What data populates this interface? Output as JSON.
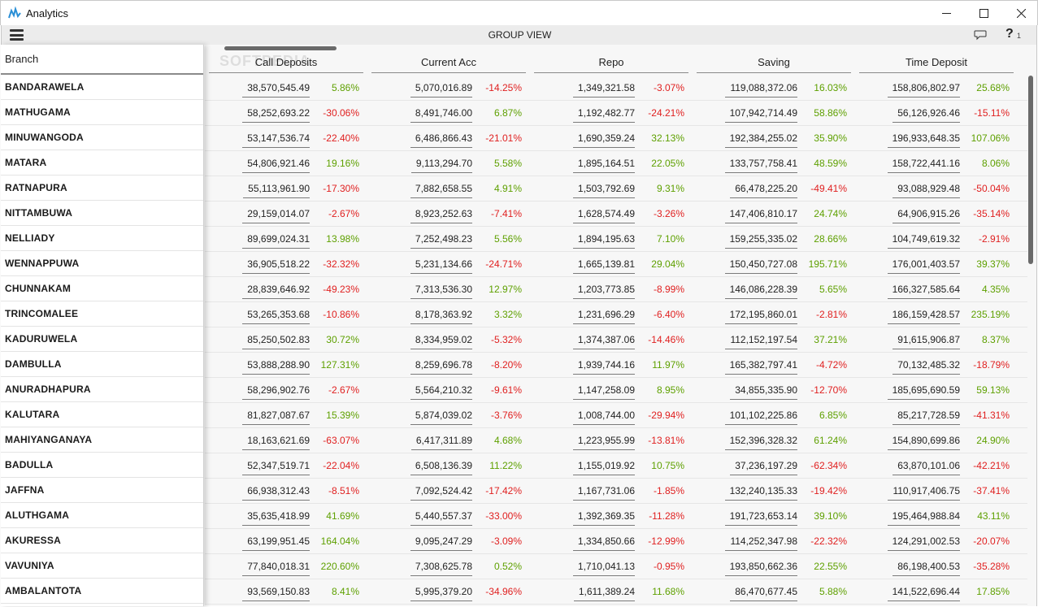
{
  "window": {
    "title": "Analytics",
    "minimize": "–",
    "maximize": "□",
    "close": "✕"
  },
  "toolbar": {
    "title": "GROUP VIEW",
    "help_glyph": "?",
    "help_count": "1",
    "menu_icon": "hamburger-icon",
    "chat_icon": "speech-bubble-icon"
  },
  "watermark": "SOFTPEDIA",
  "sidebar": {
    "header": "Branch"
  },
  "columns": [
    "Call Deposits",
    "Current Acc",
    "Repo",
    "Saving",
    "Time Deposit"
  ],
  "colors": {
    "positive": "#5ea000",
    "negative": "#e02020",
    "toolbar_bg": "#ececec",
    "grid_bg": "#f7f7f7"
  },
  "rows": [
    {
      "branch": "BANDARAWELA",
      "cells": [
        [
          "38,570,545.49",
          "5.86%"
        ],
        [
          "5,070,016.89",
          "-14.25%"
        ],
        [
          "1,349,321.58",
          "-3.07%"
        ],
        [
          "119,088,372.06",
          "16.03%"
        ],
        [
          "158,806,802.97",
          "25.68%"
        ]
      ]
    },
    {
      "branch": "MATHUGAMA",
      "cells": [
        [
          "58,252,693.22",
          "-30.06%"
        ],
        [
          "8,491,746.00",
          "6.87%"
        ],
        [
          "1,192,482.77",
          "-24.21%"
        ],
        [
          "107,942,714.49",
          "58.86%"
        ],
        [
          "56,126,926.46",
          "-15.11%"
        ]
      ]
    },
    {
      "branch": "MINUWANGODA",
      "cells": [
        [
          "53,147,536.74",
          "-22.40%"
        ],
        [
          "6,486,866.43",
          "-21.01%"
        ],
        [
          "1,690,359.24",
          "32.13%"
        ],
        [
          "192,384,255.02",
          "35.90%"
        ],
        [
          "196,933,648.35",
          "107.06%"
        ]
      ]
    },
    {
      "branch": "MATARA",
      "cells": [
        [
          "54,806,921.46",
          "19.16%"
        ],
        [
          "9,113,294.70",
          "5.58%"
        ],
        [
          "1,895,164.51",
          "22.05%"
        ],
        [
          "133,757,758.41",
          "48.59%"
        ],
        [
          "158,722,441.16",
          "8.06%"
        ]
      ]
    },
    {
      "branch": "RATNAPURA",
      "cells": [
        [
          "55,113,961.90",
          "-17.30%"
        ],
        [
          "7,882,658.55",
          "4.91%"
        ],
        [
          "1,503,792.69",
          "9.31%"
        ],
        [
          "66,478,225.20",
          "-49.41%"
        ],
        [
          "93,088,929.48",
          "-50.04%"
        ]
      ]
    },
    {
      "branch": "NITTAMBUWA",
      "cells": [
        [
          "29,159,014.07",
          "-2.67%"
        ],
        [
          "8,923,252.63",
          "-7.41%"
        ],
        [
          "1,628,574.49",
          "-3.26%"
        ],
        [
          "147,406,810.17",
          "24.74%"
        ],
        [
          "64,906,915.26",
          "-35.14%"
        ]
      ]
    },
    {
      "branch": "NELLIADY",
      "cells": [
        [
          "89,699,024.31",
          "13.98%"
        ],
        [
          "7,252,498.23",
          "5.56%"
        ],
        [
          "1,894,195.63",
          "7.10%"
        ],
        [
          "159,255,335.02",
          "28.66%"
        ],
        [
          "104,749,619.32",
          "-2.91%"
        ]
      ]
    },
    {
      "branch": "WENNAPPUWA",
      "cells": [
        [
          "36,905,518.22",
          "-32.32%"
        ],
        [
          "5,231,134.66",
          "-24.71%"
        ],
        [
          "1,665,139.81",
          "29.04%"
        ],
        [
          "150,450,727.08",
          "195.71%"
        ],
        [
          "176,001,403.57",
          "39.37%"
        ]
      ]
    },
    {
      "branch": "CHUNNAKAM",
      "cells": [
        [
          "28,839,646.92",
          "-49.23%"
        ],
        [
          "7,313,536.30",
          "12.97%"
        ],
        [
          "1,203,773.85",
          "-8.99%"
        ],
        [
          "146,086,228.39",
          "5.65%"
        ],
        [
          "166,327,585.64",
          "4.35%"
        ]
      ]
    },
    {
      "branch": "TRINCOMALEE",
      "cells": [
        [
          "53,265,353.68",
          "-10.86%"
        ],
        [
          "8,178,363.92",
          "3.32%"
        ],
        [
          "1,231,696.29",
          "-6.40%"
        ],
        [
          "172,195,860.01",
          "-2.81%"
        ],
        [
          "186,159,428.57",
          "235.19%"
        ]
      ]
    },
    {
      "branch": "KADURUWELA",
      "cells": [
        [
          "85,250,502.83",
          "30.72%"
        ],
        [
          "8,334,959.02",
          "-5.32%"
        ],
        [
          "1,374,387.06",
          "-14.46%"
        ],
        [
          "112,152,197.54",
          "37.21%"
        ],
        [
          "91,615,906.87",
          "8.37%"
        ]
      ]
    },
    {
      "branch": "DAMBULLA",
      "cells": [
        [
          "53,888,288.90",
          "127.31%"
        ],
        [
          "8,259,696.78",
          "-8.20%"
        ],
        [
          "1,939,744.16",
          "11.97%"
        ],
        [
          "165,382,797.41",
          "-4.72%"
        ],
        [
          "70,132,485.32",
          "-18.79%"
        ]
      ]
    },
    {
      "branch": "ANURADHAPURA",
      "cells": [
        [
          "58,296,902.76",
          "-2.67%"
        ],
        [
          "5,564,210.32",
          "-9.61%"
        ],
        [
          "1,147,258.09",
          "8.95%"
        ],
        [
          "34,855,335.90",
          "-12.70%"
        ],
        [
          "185,695,690.59",
          "59.13%"
        ]
      ]
    },
    {
      "branch": "KALUTARA",
      "cells": [
        [
          "81,827,087.67",
          "15.39%"
        ],
        [
          "5,874,039.02",
          "-3.76%"
        ],
        [
          "1,008,744.00",
          "-29.94%"
        ],
        [
          "101,102,225.86",
          "6.85%"
        ],
        [
          "85,217,728.59",
          "-41.31%"
        ]
      ]
    },
    {
      "branch": "MAHIYANGANAYA",
      "cells": [
        [
          "18,163,621.69",
          "-63.07%"
        ],
        [
          "6,417,311.89",
          "4.68%"
        ],
        [
          "1,223,955.99",
          "-13.81%"
        ],
        [
          "152,396,328.32",
          "61.24%"
        ],
        [
          "154,890,699.86",
          "24.90%"
        ]
      ]
    },
    {
      "branch": "BADULLA",
      "cells": [
        [
          "52,347,519.71",
          "-22.04%"
        ],
        [
          "6,508,136.39",
          "11.22%"
        ],
        [
          "1,155,019.92",
          "10.75%"
        ],
        [
          "37,236,197.29",
          "-62.34%"
        ],
        [
          "63,870,101.06",
          "-42.21%"
        ]
      ]
    },
    {
      "branch": "JAFFNA",
      "cells": [
        [
          "66,938,312.43",
          "-8.51%"
        ],
        [
          "7,092,524.42",
          "-17.42%"
        ],
        [
          "1,167,731.06",
          "-1.85%"
        ],
        [
          "132,240,135.33",
          "-19.42%"
        ],
        [
          "110,917,406.75",
          "-37.41%"
        ]
      ]
    },
    {
      "branch": "ALUTHGAMA",
      "cells": [
        [
          "35,635,418.99",
          "41.69%"
        ],
        [
          "5,440,557.37",
          "-33.00%"
        ],
        [
          "1,392,369.35",
          "-11.28%"
        ],
        [
          "191,723,653.14",
          "39.10%"
        ],
        [
          "195,464,988.84",
          "43.11%"
        ]
      ]
    },
    {
      "branch": "AKURESSA",
      "cells": [
        [
          "63,199,951.45",
          "164.04%"
        ],
        [
          "9,095,247.29",
          "-3.09%"
        ],
        [
          "1,334,850.66",
          "-12.99%"
        ],
        [
          "114,252,347.98",
          "-22.32%"
        ],
        [
          "124,291,002.53",
          "-20.07%"
        ]
      ]
    },
    {
      "branch": "VAVUNIYA",
      "cells": [
        [
          "77,840,018.31",
          "220.60%"
        ],
        [
          "7,308,625.78",
          "0.52%"
        ],
        [
          "1,710,041.13",
          "-0.95%"
        ],
        [
          "193,850,662.36",
          "22.55%"
        ],
        [
          "86,198,400.53",
          "-35.28%"
        ]
      ]
    },
    {
      "branch": "AMBALANTOTA",
      "cells": [
        [
          "93,569,150.83",
          "8.41%"
        ],
        [
          "5,995,379.20",
          "-34.96%"
        ],
        [
          "1,611,389.24",
          "11.68%"
        ],
        [
          "86,470,677.45",
          "5.88%"
        ],
        [
          "141,522,696.44",
          "17.85%"
        ]
      ]
    }
  ]
}
